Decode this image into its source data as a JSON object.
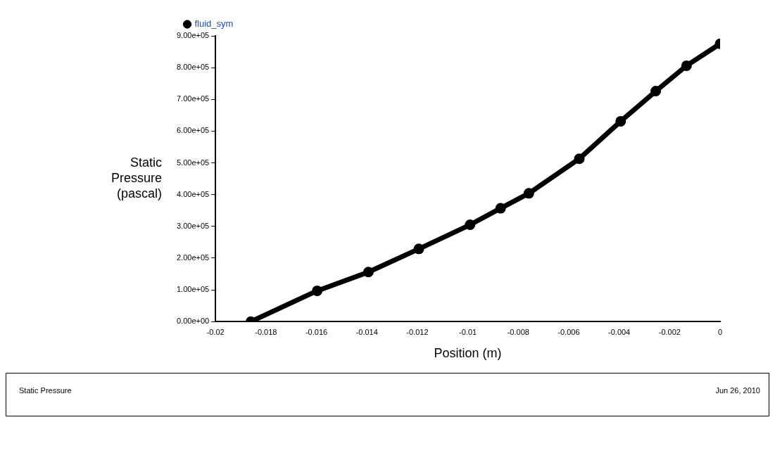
{
  "chart_data": {
    "type": "line",
    "xlabel": "Position (m)",
    "ylabel": "Static\nPressure\n(pascal)",
    "x": [
      -0.0186,
      -0.01597,
      -0.01394,
      -0.01194,
      -0.00991,
      -0.0087,
      -0.00758,
      -0.00558,
      -0.00394,
      -0.00255,
      -0.00133,
      0
    ],
    "series": [
      {
        "name": "fluid_sym",
        "color": "#000000",
        "values": [
          0,
          97000,
          156000,
          229000,
          305000,
          357000,
          404000,
          513000,
          631000,
          726000,
          806000,
          875000
        ]
      }
    ],
    "xlim": [
      -0.02,
      0
    ],
    "xticks": [
      -0.02,
      -0.018,
      -0.016,
      -0.014,
      -0.012,
      -0.01,
      -0.008,
      -0.006,
      -0.004,
      -0.002,
      0
    ],
    "ylim": [
      0,
      900000
    ],
    "yticks": [
      {
        "value": 0,
        "label": "0.00e+00"
      },
      {
        "value": 100000,
        "label": "1.00e+05"
      },
      {
        "value": 200000,
        "label": "2.00e+05"
      },
      {
        "value": 300000,
        "label": "3.00e+05"
      },
      {
        "value": 400000,
        "label": "4.00e+05"
      },
      {
        "value": 500000,
        "label": "5.00e+05"
      },
      {
        "value": 600000,
        "label": "6.00e+05"
      },
      {
        "value": 700000,
        "label": "7.00e+05"
      },
      {
        "value": 800000,
        "label": "8.00e+05"
      },
      {
        "value": 900000,
        "label": "9.00e+05"
      }
    ],
    "grid": false,
    "legend": "top left",
    "marker": "circle",
    "line_style": "solid",
    "annotations": [
      "Static Pressure",
      "Jun 26, 2010"
    ]
  }
}
